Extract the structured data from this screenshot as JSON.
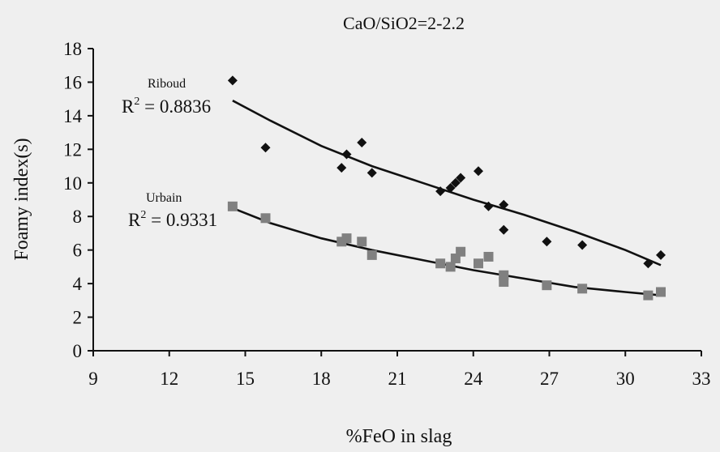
{
  "chart_data": {
    "type": "scatter",
    "title": "CaO/SiO2=2-2.2",
    "xlabel": "%FeO in slag",
    "ylabel": "Foamy index(s)",
    "xlim": [
      9,
      33
    ],
    "ylim": [
      0,
      18
    ],
    "xticks": [
      9,
      12,
      15,
      18,
      21,
      24,
      27,
      30,
      33
    ],
    "yticks": [
      0,
      2,
      4,
      6,
      8,
      10,
      12,
      14,
      16,
      18
    ],
    "grid": false,
    "series": [
      {
        "name": "Riboud",
        "marker": "diamond",
        "color": "#111111",
        "r2_prefix": "R",
        "r2_exp": "2",
        "r2_text": " = 0.8836",
        "points": [
          [
            14.5,
            16.1
          ],
          [
            15.8,
            12.1
          ],
          [
            18.8,
            10.9
          ],
          [
            19.0,
            11.7
          ],
          [
            19.6,
            12.4
          ],
          [
            20.0,
            10.6
          ],
          [
            22.7,
            9.5
          ],
          [
            23.1,
            9.7
          ],
          [
            23.3,
            10.0
          ],
          [
            23.5,
            10.3
          ],
          [
            24.2,
            10.7
          ],
          [
            24.6,
            8.6
          ],
          [
            25.2,
            8.7
          ],
          [
            25.2,
            7.2
          ],
          [
            26.9,
            6.5
          ],
          [
            28.3,
            6.3
          ],
          [
            30.9,
            5.2
          ],
          [
            31.4,
            5.7
          ]
        ],
        "trend": [
          [
            14.5,
            14.9
          ],
          [
            16.0,
            13.7
          ],
          [
            18.0,
            12.2
          ],
          [
            20.0,
            11.0
          ],
          [
            22.0,
            10.0
          ],
          [
            24.0,
            9.0
          ],
          [
            26.0,
            8.1
          ],
          [
            28.0,
            7.1
          ],
          [
            30.0,
            6.0
          ],
          [
            31.4,
            5.1
          ]
        ]
      },
      {
        "name": "Urbain",
        "marker": "square",
        "color": "#808080",
        "r2_prefix": "R",
        "r2_exp": "2",
        "r2_text": " = 0.9331",
        "points": [
          [
            14.5,
            8.6
          ],
          [
            15.8,
            7.9
          ],
          [
            18.8,
            6.5
          ],
          [
            19.0,
            6.7
          ],
          [
            19.6,
            6.5
          ],
          [
            20.0,
            5.7
          ],
          [
            22.7,
            5.2
          ],
          [
            23.1,
            5.0
          ],
          [
            23.3,
            5.5
          ],
          [
            23.5,
            5.9
          ],
          [
            24.2,
            5.2
          ],
          [
            24.6,
            5.6
          ],
          [
            25.2,
            4.1
          ],
          [
            25.2,
            4.5
          ],
          [
            26.9,
            3.9
          ],
          [
            28.3,
            3.7
          ],
          [
            30.9,
            3.3
          ],
          [
            31.4,
            3.5
          ]
        ],
        "trend": [
          [
            14.5,
            8.5
          ],
          [
            16.0,
            7.6
          ],
          [
            18.0,
            6.7
          ],
          [
            20.0,
            6.0
          ],
          [
            22.0,
            5.4
          ],
          [
            24.0,
            4.8
          ],
          [
            26.0,
            4.3
          ],
          [
            28.0,
            3.8
          ],
          [
            30.0,
            3.5
          ],
          [
            31.4,
            3.3
          ]
        ]
      }
    ]
  }
}
